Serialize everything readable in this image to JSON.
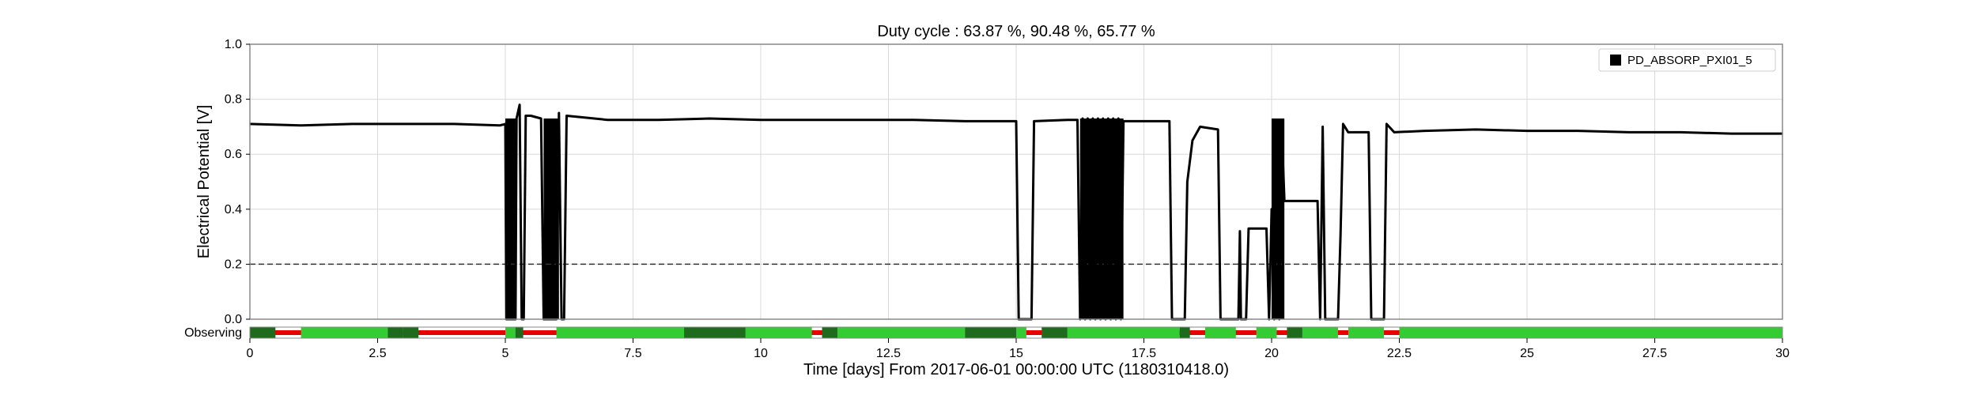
{
  "chart_data": {
    "type": "line",
    "title": "Duty cycle : 63.87 %, 90.48 %, 65.77 %",
    "xlabel": "Time [days] From 2017-06-01 00:00:00 UTC (1180310418.0)",
    "ylabel": "Electrical Potential [V]",
    "xlim": [
      0,
      30
    ],
    "ylim": [
      0,
      1.0
    ],
    "x_ticks": [
      0,
      2.5,
      5,
      7.5,
      10,
      12.5,
      15,
      17.5,
      20,
      22.5,
      25,
      27.5,
      30
    ],
    "x_tick_labels": [
      "0",
      "2.5",
      "5",
      "7.5",
      "10",
      "12.5",
      "15",
      "17.5",
      "20",
      "22.5",
      "25",
      "27.5",
      "30"
    ],
    "y_ticks": [
      0,
      0.2,
      0.4,
      0.6,
      0.8,
      1.0
    ],
    "y_tick_labels": [
      "0.0",
      "0.2",
      "0.4",
      "0.6",
      "0.8",
      "1.0"
    ],
    "grid": true,
    "legend_position": "top-right",
    "threshold": {
      "value": 0.2,
      "style": "dashed"
    },
    "series": [
      {
        "name": "PD_ABSORP_PXI01_5",
        "color": "#000000",
        "points": [
          [
            0.0,
            0.71
          ],
          [
            1.0,
            0.705
          ],
          [
            2.0,
            0.71
          ],
          [
            3.0,
            0.71
          ],
          [
            4.0,
            0.71
          ],
          [
            4.9,
            0.705
          ],
          [
            5.0,
            0.71
          ],
          [
            5.02,
            0.0
          ],
          [
            5.2,
            0.0
          ],
          [
            5.22,
            0.73
          ],
          [
            5.28,
            0.78
          ],
          [
            5.32,
            0.0
          ],
          [
            5.36,
            0.0
          ],
          [
            5.4,
            0.74
          ],
          [
            5.5,
            0.74
          ],
          [
            5.7,
            0.73
          ],
          [
            5.75,
            0.0
          ],
          [
            6.0,
            0.0
          ],
          [
            6.05,
            0.75
          ],
          [
            6.1,
            0.0
          ],
          [
            6.15,
            0.0
          ],
          [
            6.2,
            0.74
          ],
          [
            7.0,
            0.725
          ],
          [
            8.0,
            0.725
          ],
          [
            9.0,
            0.73
          ],
          [
            10.0,
            0.725
          ],
          [
            11.0,
            0.725
          ],
          [
            12.0,
            0.725
          ],
          [
            13.0,
            0.725
          ],
          [
            14.0,
            0.72
          ],
          [
            15.0,
            0.72
          ],
          [
            15.05,
            0.0
          ],
          [
            15.3,
            0.0
          ],
          [
            15.35,
            0.72
          ],
          [
            16.0,
            0.725
          ],
          [
            16.2,
            0.725
          ],
          [
            16.25,
            0.0
          ],
          [
            16.3,
            0.73
          ],
          [
            16.35,
            0.0
          ],
          [
            16.4,
            0.73
          ],
          [
            16.45,
            0.0
          ],
          [
            16.5,
            0.73
          ],
          [
            16.55,
            0.0
          ],
          [
            16.6,
            0.73
          ],
          [
            16.65,
            0.0
          ],
          [
            16.7,
            0.73
          ],
          [
            16.75,
            0.0
          ],
          [
            16.8,
            0.73
          ],
          [
            16.85,
            0.0
          ],
          [
            16.9,
            0.73
          ],
          [
            16.95,
            0.0
          ],
          [
            17.0,
            0.73
          ],
          [
            17.05,
            0.0
          ],
          [
            17.1,
            0.72
          ],
          [
            17.5,
            0.72
          ],
          [
            18.0,
            0.72
          ],
          [
            18.05,
            0.0
          ],
          [
            18.3,
            0.0
          ],
          [
            18.35,
            0.5
          ],
          [
            18.45,
            0.65
          ],
          [
            18.6,
            0.7
          ],
          [
            18.95,
            0.69
          ],
          [
            19.0,
            0.0
          ],
          [
            19.35,
            0.0
          ],
          [
            19.38,
            0.32
          ],
          [
            19.4,
            0.0
          ],
          [
            19.5,
            0.0
          ],
          [
            19.55,
            0.33
          ],
          [
            19.9,
            0.33
          ],
          [
            19.95,
            0.0
          ],
          [
            20.0,
            0.4
          ],
          [
            20.05,
            0.0
          ],
          [
            20.1,
            0.69
          ],
          [
            20.15,
            0.0
          ],
          [
            20.2,
            0.69
          ],
          [
            20.25,
            0.43
          ],
          [
            20.9,
            0.43
          ],
          [
            20.95,
            0.0
          ],
          [
            21.0,
            0.7
          ],
          [
            21.05,
            0.0
          ],
          [
            21.3,
            0.0
          ],
          [
            21.35,
            0.31
          ],
          [
            21.4,
            0.71
          ],
          [
            21.5,
            0.68
          ],
          [
            21.9,
            0.68
          ],
          [
            21.95,
            0.0
          ],
          [
            22.2,
            0.0
          ],
          [
            22.25,
            0.71
          ],
          [
            22.4,
            0.68
          ],
          [
            23.0,
            0.685
          ],
          [
            24.0,
            0.69
          ],
          [
            25.0,
            0.685
          ],
          [
            26.0,
            0.685
          ],
          [
            27.0,
            0.68
          ],
          [
            28.0,
            0.68
          ],
          [
            29.0,
            0.675
          ],
          [
            30.0,
            0.675
          ]
        ]
      }
    ],
    "bands": [
      [
        5.0,
        5.2
      ],
      [
        5.75,
        6.05
      ],
      [
        16.25,
        17.1
      ],
      [
        20.0,
        20.25
      ]
    ],
    "state_bar": {
      "label": "Observing",
      "colors": {
        "base": "#e60000",
        "observing": "#33cc33",
        "dark": "#1e6b1e"
      },
      "observing_segments": [
        [
          0.0,
          0.3
        ],
        [
          1.0,
          3.0
        ],
        [
          5.0,
          5.3
        ],
        [
          6.0,
          11.0
        ],
        [
          11.2,
          15.2
        ],
        [
          15.5,
          18.2
        ],
        [
          18.7,
          19.3
        ],
        [
          19.7,
          20.1
        ],
        [
          20.5,
          21.3
        ],
        [
          21.5,
          22.2
        ],
        [
          22.5,
          30.0
        ]
      ],
      "dark_segments": [
        [
          0.0,
          0.5
        ],
        [
          2.7,
          3.0
        ],
        [
          3.0,
          3.3
        ],
        [
          5.2,
          5.35
        ],
        [
          8.5,
          9.7
        ],
        [
          11.2,
          11.5
        ],
        [
          14.0,
          15.0
        ],
        [
          15.5,
          16.0
        ],
        [
          18.2,
          18.4
        ],
        [
          20.3,
          20.6
        ]
      ]
    }
  }
}
